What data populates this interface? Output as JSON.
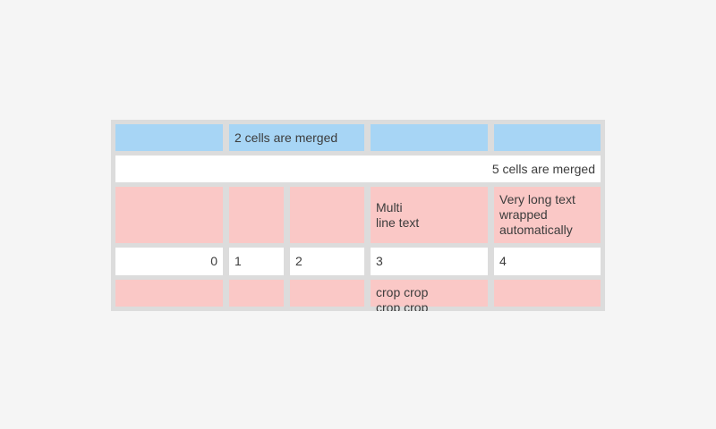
{
  "colors": {
    "page-bg": "#f5f5f5",
    "grid-gray": "#dcdcdc",
    "header-blue": "#a7d5f5",
    "row-pink": "#fac8c6",
    "cell-white": "#ffffff",
    "text": "#3c3c3c"
  },
  "table": {
    "rows": [
      {
        "cells": [
          "",
          "2 cells are merged",
          "",
          ""
        ]
      },
      {
        "cells": [
          "5 cells are merged"
        ]
      },
      {
        "cells": [
          "",
          "",
          "",
          "Multi\nline text",
          "Very long text wrapped automatically"
        ]
      },
      {
        "cells": [
          "0",
          "1",
          "2",
          "3",
          "4"
        ]
      },
      {
        "cells": [
          "",
          "",
          "",
          "crop crop crop crop",
          ""
        ]
      }
    ]
  }
}
